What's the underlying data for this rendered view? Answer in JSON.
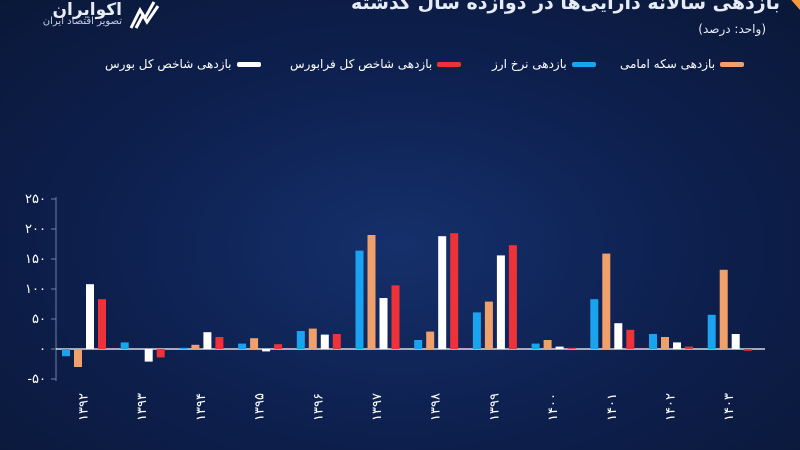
{
  "header": {
    "logo_name": "اکوایران",
    "logo_tagline": "تصویر اقتصاد ایران",
    "title": "بازدهی سالانه دارایی‌ها در دوازده سال گذشته",
    "unit": "(واحد: درصد)"
  },
  "colors": {
    "coin": "#f0a06b",
    "fx": "#1ba3f0",
    "fara": "#ee3338",
    "bourse": "#ffffff",
    "accent": "#f59a3c"
  },
  "chart_data": {
    "type": "bar",
    "title": "بازدهی سالانه دارایی‌ها در دوازده سال گذشته",
    "ylabel": "(واحد: درصد)",
    "ylim": [
      -50,
      250
    ],
    "yticks": [
      -50,
      0,
      50,
      100,
      150,
      200,
      250
    ],
    "ytick_labels": [
      "-۵۰",
      "۰",
      "۵۰",
      "۱۰۰",
      "۱۵۰",
      "۲۰۰",
      "۲۵۰"
    ],
    "grid": false,
    "legend_position": "top",
    "categories": [
      "۱۳۹۲",
      "۱۳۹۳",
      "۱۳۹۴",
      "۱۳۹۵",
      "۱۳۹۶",
      "۱۳۹۷",
      "۱۳۹۸",
      "۱۳۹۹",
      "۱۴۰۰",
      "۱۴۰۱",
      "۱۴۰۲",
      "۱۴۰۳"
    ],
    "series": [
      {
        "name": "بازدهی نرخ ارز",
        "key": "fx",
        "values": [
          -12,
          11,
          2,
          9,
          30,
          164,
          15,
          61,
          9,
          83,
          25,
          57
        ]
      },
      {
        "name": "بازدهی سکه امامی",
        "key": "coin",
        "values": [
          -30,
          0,
          7,
          18,
          34,
          190,
          29,
          79,
          15,
          159,
          20,
          132
        ]
      },
      {
        "name": "بازدهی شاخص کل بورس",
        "key": "bourse",
        "values": [
          108,
          -21,
          28,
          -4,
          24,
          85,
          188,
          156,
          4,
          43,
          11,
          25
        ]
      },
      {
        "name": "بازدهی شاخص کل فرابورس",
        "key": "fara",
        "values": [
          83,
          -14,
          20,
          8,
          25,
          106,
          193,
          173,
          2,
          32,
          4,
          -3
        ]
      }
    ],
    "legend": [
      {
        "name": "بازدهی سکه امامی",
        "key": "coin"
      },
      {
        "name": "بازدهی نرخ ارز",
        "key": "fx"
      },
      {
        "name": "بازدهی شاخص کل فرابورس",
        "key": "fara"
      },
      {
        "name": "بازدهی شاخص کل بورس",
        "key": "bourse"
      }
    ]
  }
}
